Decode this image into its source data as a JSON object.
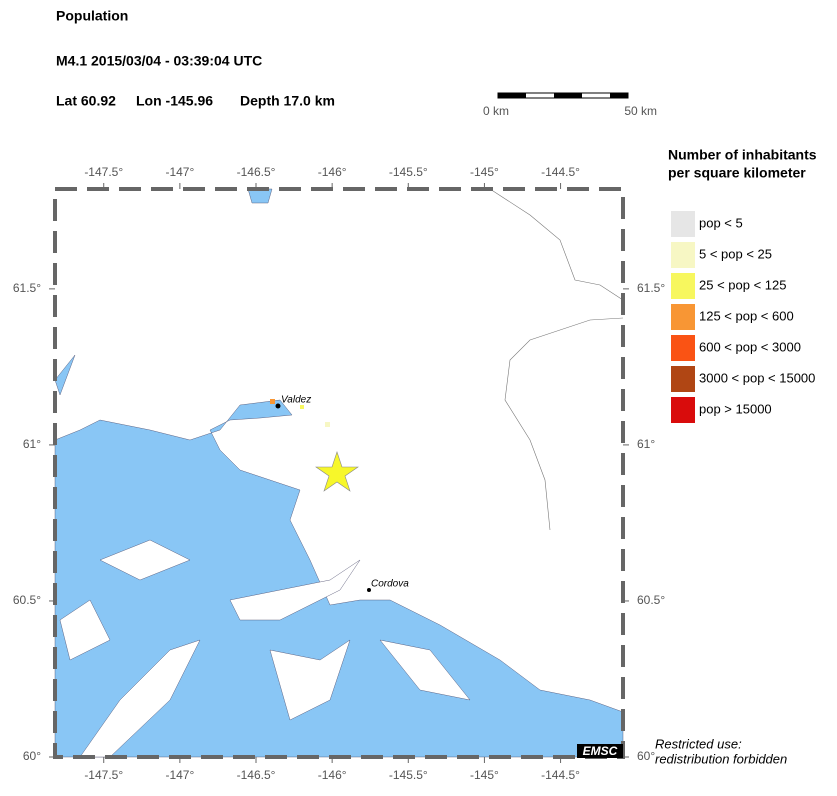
{
  "header": {
    "title": "Population",
    "event": "M4.1  2015/03/04 - 03:39:04 UTC",
    "lat": "Lat 60.92",
    "lon": "Lon -145.96",
    "depth": "Depth  17.0 km"
  },
  "scale": {
    "start": "0 km",
    "end": "50 km"
  },
  "map": {
    "lon_range": [
      -147.82,
      -144.09
    ],
    "lat_range": [
      60,
      61.82
    ],
    "lon_ticks": [
      {
        "value": -147.5,
        "label": "-147.5°"
      },
      {
        "value": -147,
        "label": "-147°"
      },
      {
        "value": -146.5,
        "label": "-146.5°"
      },
      {
        "value": -146,
        "label": "-146°"
      },
      {
        "value": -145.5,
        "label": "-145.5°"
      },
      {
        "value": -145,
        "label": "-145°"
      },
      {
        "value": -144.5,
        "label": "-144.5°"
      }
    ],
    "lat_ticks": [
      {
        "value": 61.5,
        "label": "61.5°"
      },
      {
        "value": 61,
        "label": "61°"
      },
      {
        "value": 60.5,
        "label": "60.5°"
      },
      {
        "value": 60,
        "label": "60°"
      }
    ],
    "places": [
      "Valdez",
      "Cordova"
    ],
    "agency": "EMSC"
  },
  "legend": {
    "title": [
      "Number of inhabitants",
      "per square kilometer"
    ],
    "items": [
      {
        "label": "pop < 5",
        "color": "#e6e6e6"
      },
      {
        "label": "5 < pop < 25",
        "color": "#f7f7c4"
      },
      {
        "label": "25 < pop < 125",
        "color": "#f7f75e"
      },
      {
        "label": "125 < pop < 600",
        "color": "#f89634"
      },
      {
        "label": "600 < pop < 3000",
        "color": "#fa5314"
      },
      {
        "label": "3000 < pop < 15000",
        "color": "#b04614"
      },
      {
        "label": "pop > 15000",
        "color": "#d90c0c"
      }
    ]
  },
  "notice": [
    "Restricted use:",
    "redistribution forbidden"
  ]
}
